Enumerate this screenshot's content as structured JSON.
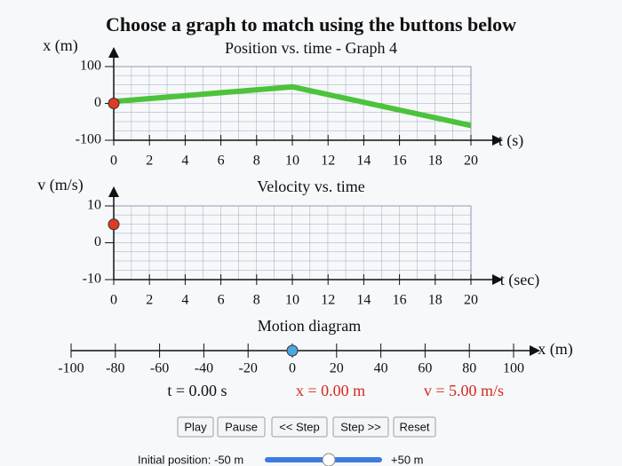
{
  "title": "Choose a graph to match using the buttons below",
  "chart_data": [
    {
      "type": "line",
      "title": "Position vs. time - Graph 4",
      "y_label": "x (m)",
      "x_label": "t (s)",
      "xlim": [
        0,
        20
      ],
      "xticks": [
        0,
        2,
        4,
        6,
        8,
        10,
        12,
        14,
        16,
        18,
        20
      ],
      "ylim": [
        -100,
        100
      ],
      "yticks": [
        -100,
        0,
        100
      ],
      "series": [
        {
          "color": "#4cc33a",
          "x": [
            0,
            10,
            20
          ],
          "values": [
            5,
            45,
            -60
          ]
        }
      ],
      "marker": {
        "x": 0,
        "value": 0,
        "color": "#e03a25"
      }
    },
    {
      "type": "line",
      "title": "Velocity vs. time",
      "y_label": "v (m/s)",
      "x_label": "t (sec)",
      "xlim": [
        0,
        20
      ],
      "xticks": [
        0,
        2,
        4,
        6,
        8,
        10,
        12,
        14,
        16,
        18,
        20
      ],
      "ylim": [
        -10,
        10
      ],
      "yticks": [
        -10,
        0,
        10
      ],
      "series": [],
      "marker": {
        "x": 0,
        "value": 5,
        "color": "#e03a25"
      }
    },
    {
      "type": "number_line",
      "title": "Motion diagram",
      "x_label": "x (m)",
      "xlim": [
        -100,
        100
      ],
      "xticks": [
        -100,
        -80,
        -60,
        -40,
        -20,
        0,
        20,
        40,
        60,
        80,
        100
      ],
      "marker": {
        "value": 0,
        "color": "#4aa8e0"
      }
    }
  ],
  "readouts": {
    "time": "t = 0.00 s",
    "position": "x = 0.00 m",
    "velocity": "v = 5.00 m/s"
  },
  "buttons": [
    "Play",
    "Pause",
    "<< Step",
    "Step >>",
    "Reset"
  ],
  "slider": {
    "label": "Initial position: -50 m",
    "max_label": "+50 m"
  }
}
